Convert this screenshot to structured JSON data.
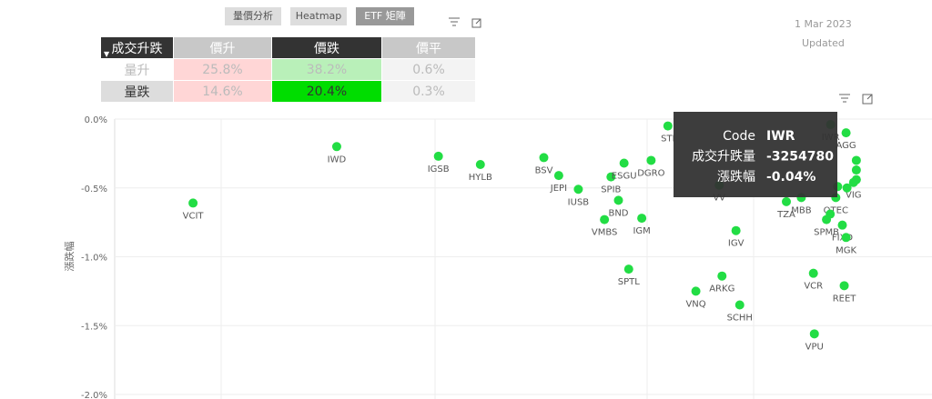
{
  "tabs": [
    "量價分析",
    "Heatmap",
    "ETF 矩陣"
  ],
  "date": "1 Mar 2023",
  "updated": "Updated",
  "matrix": {
    "corner": "成交升跌",
    "columns": [
      "價升",
      "價跌",
      "價平"
    ],
    "rows": [
      {
        "label": "量升",
        "cells": [
          "25.8%",
          "38.2%",
          "0.6%"
        ]
      },
      {
        "label": "量跌",
        "cells": [
          "14.6%",
          "20.4%",
          "0.3%"
        ]
      }
    ]
  },
  "chart_data": {
    "type": "scatter",
    "y_label": "漲跌幅",
    "color": "#22dd44",
    "xlim": [
      -80000000,
      0
    ],
    "ylim": [
      -2,
      0
    ],
    "yticks": [
      {
        "value": 0,
        "label": "0.0%"
      },
      {
        "value": -0.5,
        "label": "-0.5%"
      },
      {
        "value": -1,
        "label": "-1.0%"
      },
      {
        "value": -1.5,
        "label": "-1.5%"
      },
      {
        "value": -2,
        "label": "-2.0%"
      }
    ],
    "grid": true,
    "labels": [
      "VCIT",
      "IWD",
      "IGSB",
      "HYLB",
      "BSV",
      "JEPI",
      "IUSB",
      "SPIB",
      "ESGU",
      "DGRO",
      "BND",
      "VMBS",
      "IGM",
      "STI",
      "SPTL",
      "VNQ",
      "ARKG",
      "SCHH",
      "IGV",
      "VCR",
      "REET",
      "VPU",
      "IWR",
      "TZA",
      "MBB",
      "QTEC",
      "SPMB",
      "FIXD",
      "MGK",
      "AGG",
      "VIG",
      "VV",
      null,
      null,
      null,
      null,
      null,
      null
    ],
    "x": [
      -71600000,
      -56200000,
      -45300000,
      -40800000,
      -34000000,
      -32400000,
      -30300000,
      -26800000,
      -25400000,
      -22500000,
      -26000000,
      -27500000,
      -23500000,
      -20700000,
      -24900000,
      -17700000,
      -14900000,
      -13000000,
      -13400000,
      -5100000,
      -1800000,
      -5000000,
      -3254780,
      -8000000,
      -6400000,
      -2700000,
      -3700000,
      -2000000,
      -1600000,
      -1600000,
      -800000,
      -15200000,
      -500000,
      -500000,
      -500000,
      -1500000,
      -2500000,
      -3300000
    ],
    "values": [
      -0.61,
      -0.2,
      -0.27,
      -0.33,
      -0.28,
      -0.41,
      -0.51,
      -0.42,
      -0.32,
      -0.3,
      -0.59,
      -0.73,
      -0.72,
      -0.05,
      -1.09,
      -1.25,
      -1.14,
      -1.35,
      -0.81,
      -1.12,
      -1.21,
      -1.56,
      -0.04,
      -0.6,
      -0.57,
      -0.57,
      -0.73,
      -0.77,
      -0.86,
      -0.1,
      -0.46,
      -0.48,
      -0.3,
      -0.37,
      -0.44,
      -0.5,
      -0.49,
      -0.69
    ]
  },
  "tooltip": {
    "rows": [
      {
        "key": "Code",
        "value": "IWR"
      },
      {
        "key": "成交升跌量",
        "value": "-3254780"
      },
      {
        "key": "漲跌幅",
        "value": "-0.04%"
      }
    ]
  }
}
